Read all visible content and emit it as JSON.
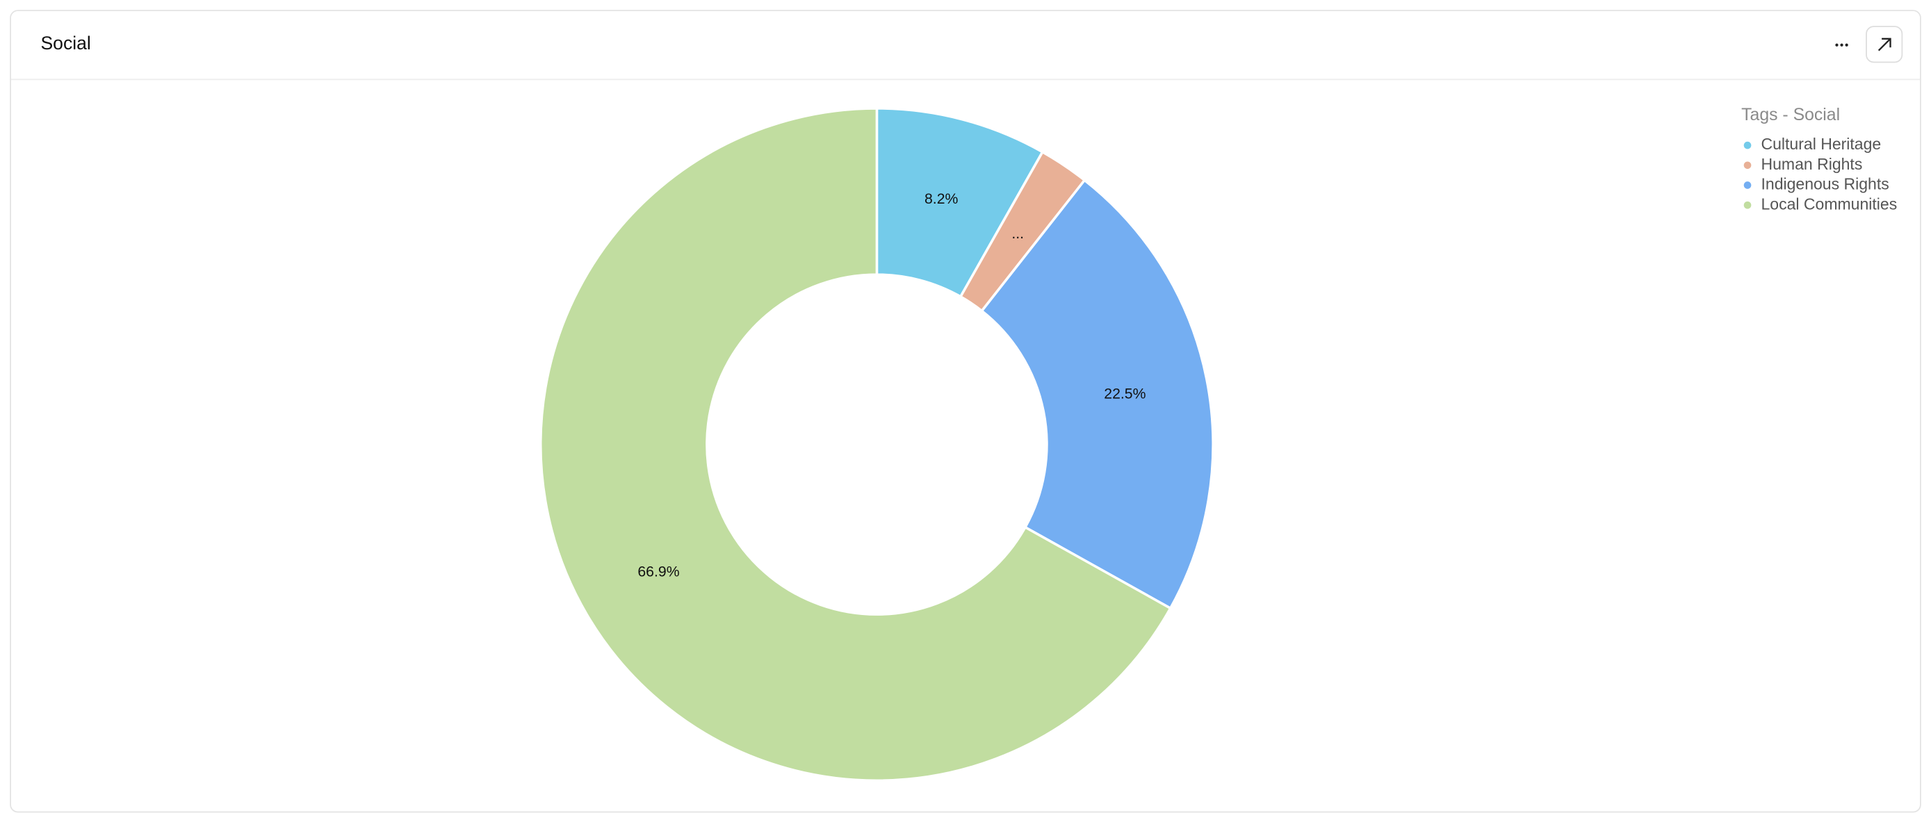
{
  "chart_data": {
    "type": "donut",
    "title": "Social",
    "legend_title": "Tags - Social",
    "categories": [
      "Cultural Heritage",
      "Human Rights",
      "Indigenous Rights",
      "Local Communities"
    ],
    "values": [
      8.2,
      2.4,
      22.5,
      66.9
    ],
    "value_labels": [
      "8.2%",
      "...",
      "22.5%",
      "66.9%"
    ],
    "colors": [
      "#74cbea",
      "#e8b096",
      "#74aef2",
      "#c1dda0"
    ],
    "legend": "top-right"
  }
}
